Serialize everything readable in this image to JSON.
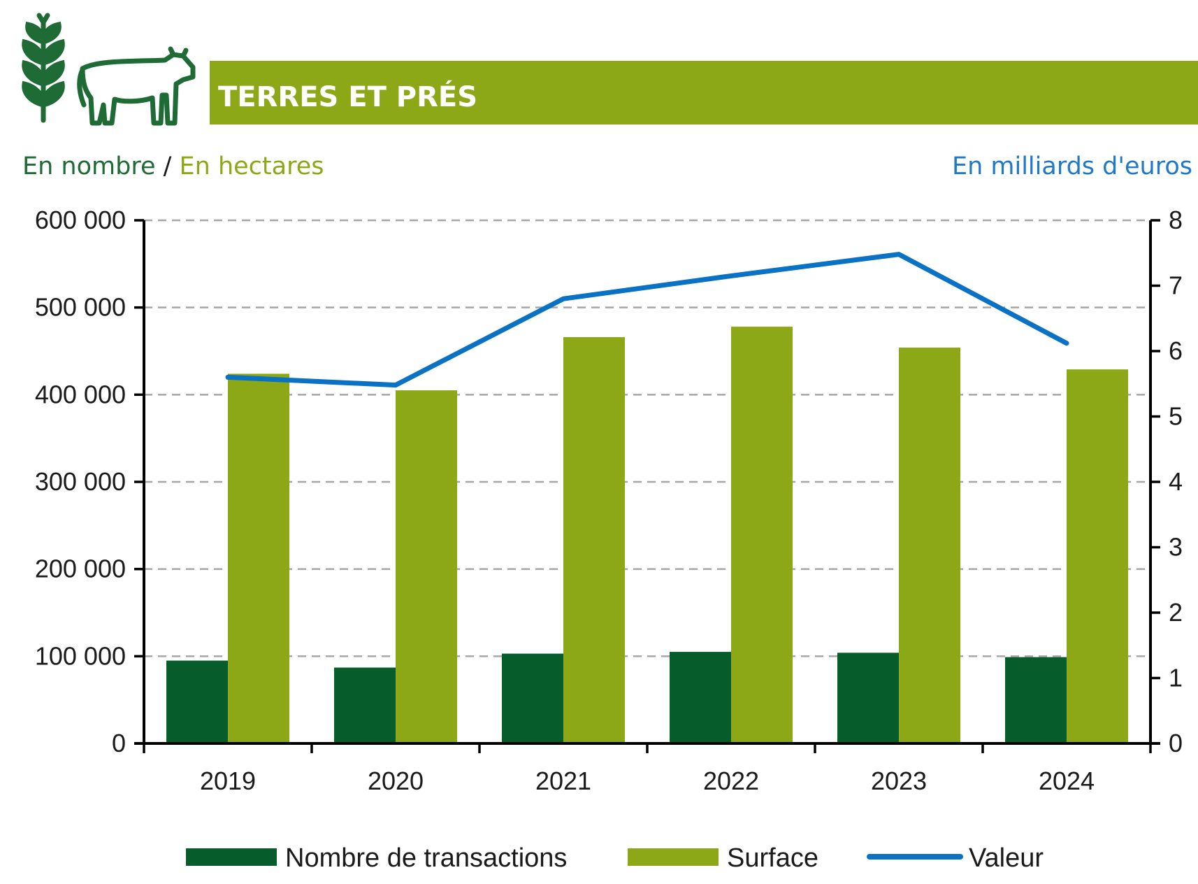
{
  "header": {
    "title": "TERRES ET PRÉS",
    "banner_color": "#8ca817",
    "icons": [
      "wheat-icon",
      "cow-icon"
    ]
  },
  "units": {
    "left_part1": "En nombre",
    "separator": " / ",
    "left_part2": "En hectares",
    "right": "En milliards d'euros"
  },
  "colors": {
    "transactions": "#065c2b",
    "surface": "#8ca817",
    "valeur": "#0a72c4",
    "icons": "#1f6b35",
    "units_left1": "#1f6b35",
    "units_left2": "#8ca817",
    "units_right": "#1f78c8"
  },
  "chart_data": {
    "type": "bar",
    "categories": [
      "2019",
      "2020",
      "2021",
      "2022",
      "2023",
      "2024"
    ],
    "series": [
      {
        "name": "Nombre de transactions",
        "type": "bar",
        "axis": "left",
        "values": [
          95000,
          87000,
          103000,
          105000,
          104000,
          99000
        ]
      },
      {
        "name": "Surface",
        "type": "bar",
        "axis": "left",
        "values": [
          424000,
          405000,
          466000,
          478000,
          454000,
          429000
        ]
      },
      {
        "name": "Valeur",
        "type": "line",
        "axis": "right",
        "values": [
          5.6,
          5.48,
          6.8,
          7.15,
          7.48,
          6.12
        ]
      }
    ],
    "ylim_left": [
      0,
      600000
    ],
    "yticks_left": [
      "0",
      "100 000",
      "200 000",
      "300 000",
      "400 000",
      "500 000",
      "600 000"
    ],
    "ylim_right": [
      0,
      8
    ],
    "yticks_right": [
      "0",
      "1",
      "2",
      "3",
      "4",
      "5",
      "6",
      "7",
      "8"
    ],
    "grid": "horizontal dashed",
    "legend_position": "bottom"
  }
}
